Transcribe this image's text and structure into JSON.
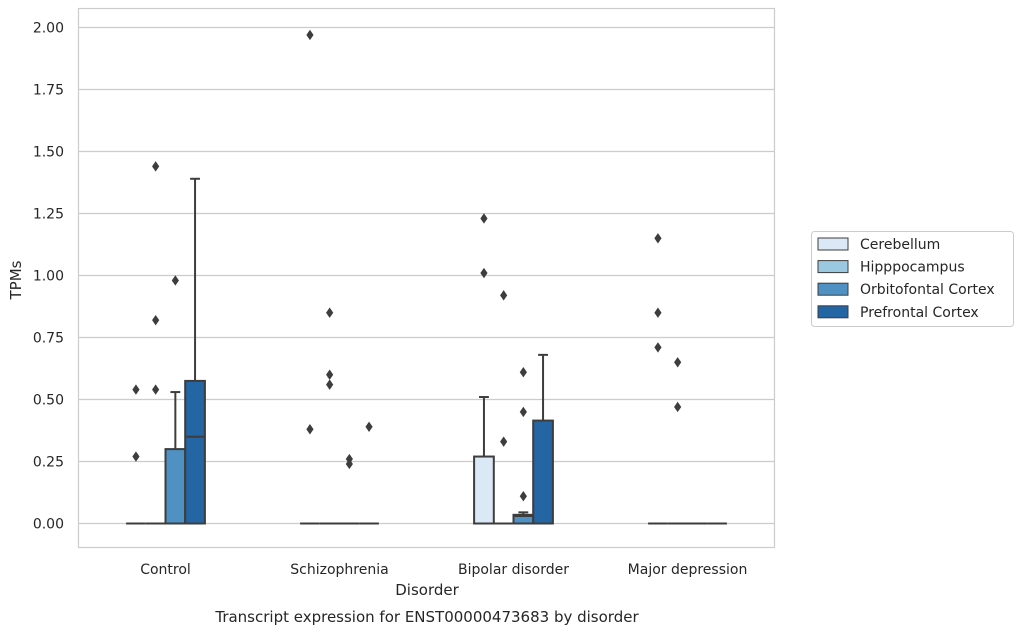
{
  "chart_data": {
    "type": "box",
    "caption": "Transcript expression for ENST00000473683 by disorder",
    "xlabel": "Disorder",
    "ylabel": "TPMs",
    "ylim": [
      -0.1,
      2.07
    ],
    "yticks": [
      "0.00",
      "0.25",
      "0.50",
      "0.75",
      "1.00",
      "1.25",
      "1.50",
      "1.75",
      "2.00"
    ],
    "ytick_values": [
      0,
      0.25,
      0.5,
      0.75,
      1.0,
      1.25,
      1.5,
      1.75,
      2.0
    ],
    "grid": "horizontal",
    "legend_placement": "right",
    "categories": [
      "Control",
      "Schizophrenia",
      "Bipolar disorder",
      "Major depression"
    ],
    "series": [
      {
        "name": "Cerebellum",
        "color": "#dbe9f6",
        "boxes": [
          {
            "q1": 0,
            "median": 0,
            "q3": 0,
            "whislo": 0,
            "whishi": 0,
            "fliers": [
              0.27,
              0.54
            ]
          },
          {
            "q1": 0,
            "median": 0,
            "q3": 0,
            "whislo": 0,
            "whishi": 0,
            "fliers": [
              0.38,
              1.97
            ]
          },
          {
            "q1": 0,
            "median": 0,
            "q3": 0.27,
            "whislo": 0,
            "whishi": 0.51,
            "fliers": [
              1.01,
              1.23
            ]
          },
          {
            "q1": 0,
            "median": 0,
            "q3": 0,
            "whislo": 0,
            "whishi": 0,
            "fliers": [
              0.71,
              0.85,
              1.15
            ]
          }
        ]
      },
      {
        "name": "Hipppocampus",
        "color": "#9ac8e0",
        "boxes": [
          {
            "q1": 0,
            "median": 0,
            "q3": 0,
            "whislo": 0,
            "whishi": 0,
            "fliers": [
              0.54,
              0.82,
              1.44
            ]
          },
          {
            "q1": 0,
            "median": 0,
            "q3": 0,
            "whislo": 0,
            "whishi": 0,
            "fliers": [
              0.56,
              0.6,
              0.85
            ]
          },
          {
            "q1": 0,
            "median": 0,
            "q3": 0,
            "whislo": 0,
            "whishi": 0,
            "fliers": [
              0.33,
              0.92
            ]
          },
          {
            "q1": 0,
            "median": 0,
            "q3": 0,
            "whislo": 0,
            "whishi": 0,
            "fliers": [
              0.47,
              0.65
            ]
          }
        ]
      },
      {
        "name": "Orbitofontal Cortex",
        "color": "#4f91c2",
        "boxes": [
          {
            "q1": 0,
            "median": 0,
            "q3": 0.3,
            "whislo": 0,
            "whishi": 0.53,
            "fliers": [
              0.98
            ]
          },
          {
            "q1": 0,
            "median": 0,
            "q3": 0,
            "whislo": 0,
            "whishi": 0,
            "fliers": [
              0.24,
              0.26
            ]
          },
          {
            "q1": 0,
            "median": 0.03,
            "q3": 0.035,
            "whislo": 0,
            "whishi": 0.045,
            "fliers": [
              0.11,
              0.45,
              0.61
            ]
          },
          {
            "q1": 0,
            "median": 0,
            "q3": 0,
            "whislo": 0,
            "whishi": 0,
            "fliers": []
          }
        ]
      },
      {
        "name": "Prefrontal Cortex",
        "color": "#2465a3",
        "boxes": [
          {
            "q1": 0,
            "median": 0.35,
            "q3": 0.575,
            "whislo": 0,
            "whishi": 1.39,
            "fliers": []
          },
          {
            "q1": 0,
            "median": 0,
            "q3": 0,
            "whislo": 0,
            "whishi": 0,
            "fliers": [
              0.39
            ]
          },
          {
            "q1": 0,
            "median": 0,
            "q3": 0.415,
            "whislo": 0,
            "whishi": 0.68,
            "fliers": []
          },
          {
            "q1": 0,
            "median": 0,
            "q3": 0,
            "whislo": 0,
            "whishi": 0,
            "fliers": []
          }
        ]
      }
    ]
  },
  "colors": {
    "grid": "#cccccc",
    "frame": "#cccccc",
    "box_edge": "#3d3d3d"
  }
}
